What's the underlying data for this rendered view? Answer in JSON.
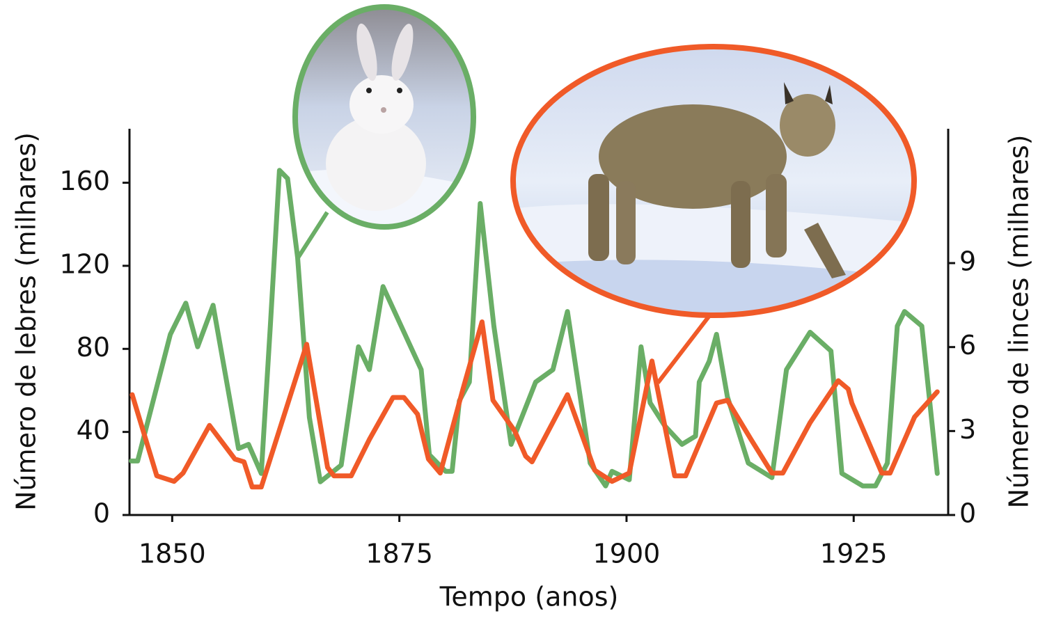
{
  "chart_data": {
    "type": "line",
    "xlabel": "Tempo (anos)",
    "ylabel": "Número de lebres (milhares)",
    "y2label": "Número de linces (milhares)",
    "xlim": [
      1845.3,
      1935.4
    ],
    "xticks": [
      1850,
      1875,
      1900,
      1925
    ],
    "ylim": [
      0,
      186
    ],
    "yticks": [
      0,
      40,
      80,
      120,
      160
    ],
    "y2lim": [
      0,
      13.8
    ],
    "y2ticks": [
      0,
      3,
      6,
      9
    ],
    "series": [
      {
        "color": "#6aae66",
        "x": [
          1845.5,
          1846.2,
          1849.8,
          1851.5,
          1852.8,
          1854.5,
          1857.3,
          1858.4,
          1859.8,
          1860.8,
          1861.8,
          1862.7,
          1863.8,
          1865.1,
          1866.3,
          1868.6,
          1870.5,
          1871.7,
          1873.2,
          1877.4,
          1878.3,
          1880.1,
          1880.8,
          1881.6,
          1882.7,
          1883.9,
          1885.4,
          1887.3,
          1890.0,
          1891.9,
          1893.5,
          1896.0,
          1897.7,
          1898.4,
          1900.3,
          1901.6,
          1902.6,
          1904.2,
          1906.1,
          1907.6,
          1908.0,
          1909.1,
          1909.9,
          1911.1,
          1913.4,
          1916.0,
          1917.6,
          1920.2,
          1922.5,
          1923.7,
          1926.0,
          1927.4,
          1928.7,
          1929.8,
          1930.6,
          1932.5,
          1934.2
        ],
        "values": [
          26,
          26,
          87,
          102,
          81,
          101,
          32,
          34,
          20,
          91,
          166,
          162,
          124,
          47,
          16,
          24,
          81,
          70,
          110,
          70,
          29,
          21,
          21,
          55,
          64,
          150,
          91,
          34,
          64,
          70,
          98,
          25,
          14,
          21,
          17,
          81,
          54,
          43,
          34,
          38,
          64,
          74,
          87,
          57,
          25,
          18,
          70,
          88,
          79,
          20,
          14,
          14,
          25,
          91,
          98,
          91,
          20
        ]
      },
      {
        "color": "#f05a28",
        "axis": "y2",
        "x": [
          1845.6,
          1848.3,
          1850.2,
          1851.2,
          1854.1,
          1856.9,
          1857.9,
          1858.8,
          1859.8,
          1864.8,
          1867.1,
          1867.8,
          1869.7,
          1871.7,
          1874.3,
          1875.5,
          1877.0,
          1878.2,
          1879.5,
          1882.0,
          1884.1,
          1885.3,
          1887.7,
          1888.9,
          1889.6,
          1893.5,
          1896.5,
          1898.4,
          1900.3,
          1902.8,
          1904.2,
          1905.3,
          1906.5,
          1909.9,
          1911.1,
          1913.7,
          1916.0,
          1917.2,
          1920.2,
          1923.3,
          1924.4,
          1924.8,
          1928.1,
          1929.0,
          1931.7,
          1934.2
        ],
        "values": [
          4.3,
          1.4,
          1.2,
          1.5,
          3.2,
          2.0,
          1.9,
          1.0,
          1.0,
          6.1,
          1.7,
          1.4,
          1.4,
          2.7,
          4.2,
          4.2,
          3.6,
          2.0,
          1.5,
          4.5,
          6.9,
          4.1,
          3.0,
          2.1,
          1.9,
          4.3,
          1.6,
          1.2,
          1.5,
          5.5,
          3.2,
          1.4,
          1.4,
          4.0,
          4.1,
          2.7,
          1.5,
          1.5,
          3.3,
          4.8,
          4.5,
          4.0,
          1.5,
          1.5,
          3.5,
          4.4
        ]
      }
    ]
  }
}
